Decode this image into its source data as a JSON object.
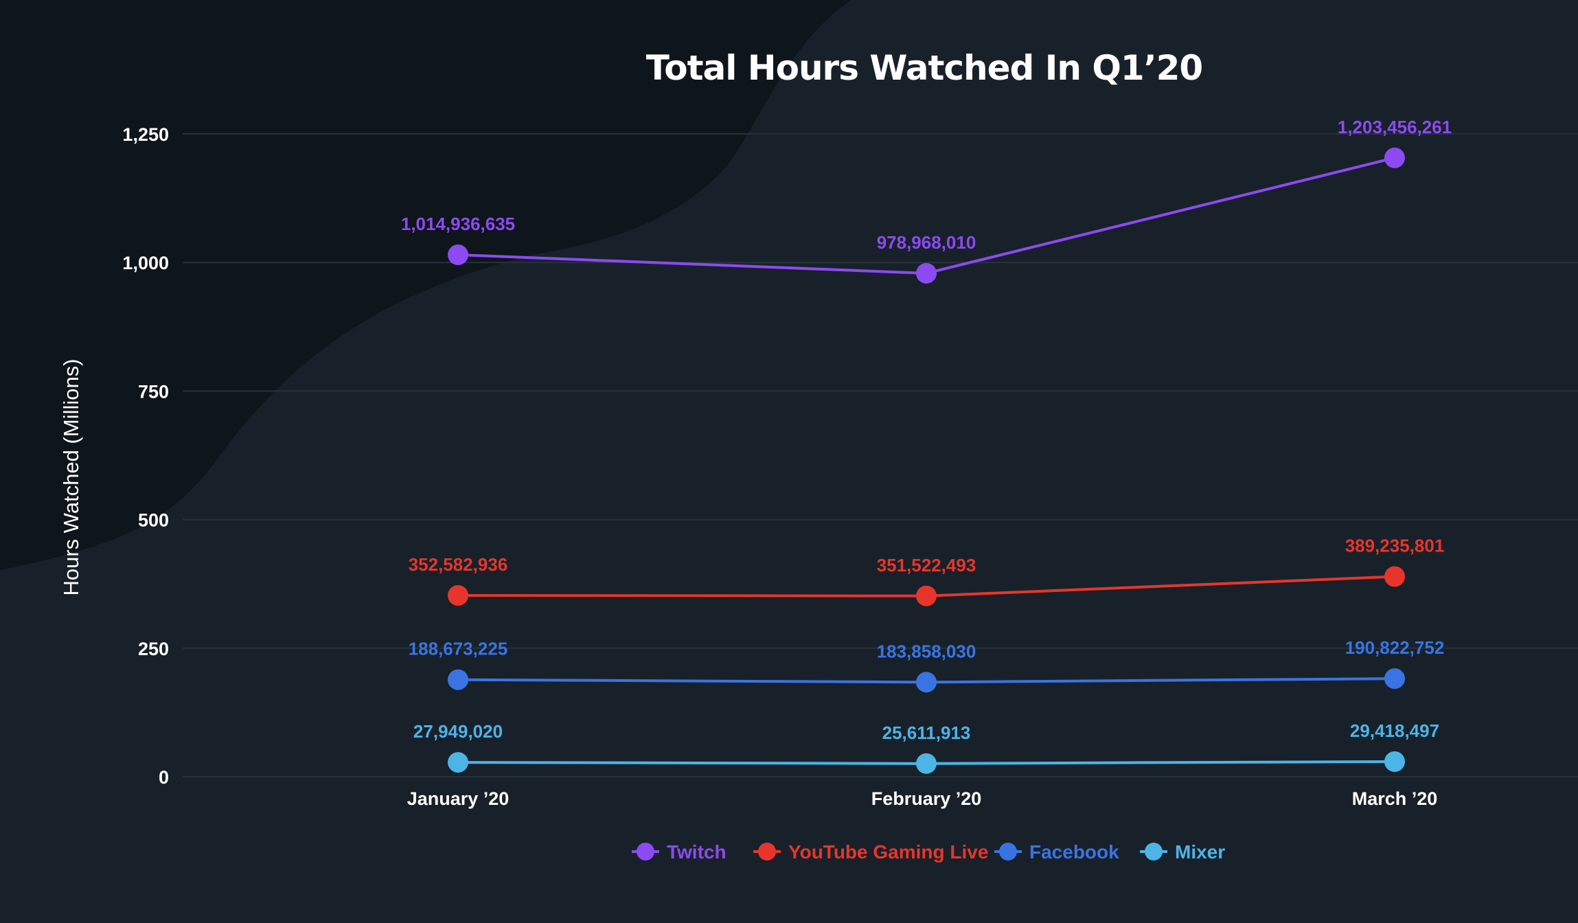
{
  "chart_data": {
    "type": "line",
    "title": "Total Hours Watched In Q1’20",
    "xlabel": "",
    "ylabel": "Hours Watched (Millions)",
    "ylim": [
      0,
      1250
    ],
    "yticks": [
      0,
      250,
      500,
      750,
      1000,
      1250
    ],
    "ytick_labels": [
      "0",
      "250",
      "500",
      "750",
      "1,000",
      "1,250"
    ],
    "categories": [
      "January ’20",
      "February ’20",
      "March ’20"
    ],
    "grid": true,
    "legend_position": "bottom-center",
    "series": [
      {
        "name": "Twitch",
        "color": "#8c4af0",
        "values": [
          1014.936635,
          978.96801,
          1203.456261
        ],
        "labels": [
          "1,014,936,635",
          "978,968,010",
          "1,203,456,261"
        ]
      },
      {
        "name": "YouTube Gaming Live",
        "color": "#e8352b",
        "values": [
          352.582936,
          351.522493,
          389.235801
        ],
        "labels": [
          "352,582,936",
          "351,522,493",
          "389,235,801"
        ]
      },
      {
        "name": "Facebook",
        "color": "#3a74e3",
        "values": [
          188.673225,
          183.85803,
          190.822752
        ],
        "labels": [
          "188,673,225",
          "183,858,030",
          "190,822,752"
        ]
      },
      {
        "name": "Mixer",
        "color": "#4db4e6",
        "values": [
          27.94902,
          25.611913,
          29.418497
        ],
        "labels": [
          "27,949,020",
          "25,611,913",
          "29,418,497"
        ]
      }
    ]
  },
  "colors": {
    "background": "#0e151b",
    "background_wave": "#18212a",
    "grid": "#27323c",
    "text": "#ffffff"
  }
}
